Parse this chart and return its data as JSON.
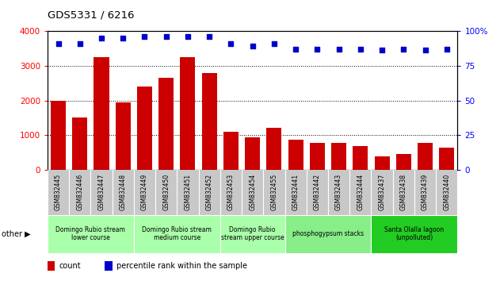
{
  "title": "GDS5331 / 6216",
  "samples": [
    "GSM832445",
    "GSM832446",
    "GSM832447",
    "GSM832448",
    "GSM832449",
    "GSM832450",
    "GSM832451",
    "GSM832452",
    "GSM832453",
    "GSM832454",
    "GSM832455",
    "GSM832441",
    "GSM832442",
    "GSM832443",
    "GSM832444",
    "GSM832437",
    "GSM832438",
    "GSM832439",
    "GSM832440"
  ],
  "counts": [
    2000,
    1500,
    3250,
    1950,
    2400,
    2650,
    3250,
    2800,
    1100,
    950,
    1220,
    870,
    780,
    780,
    700,
    390,
    450,
    780,
    640
  ],
  "percentiles": [
    91,
    91,
    95,
    95,
    96,
    96,
    96,
    96,
    91,
    89,
    91,
    87,
    87,
    87,
    87,
    86,
    87,
    86,
    87
  ],
  "bar_color": "#cc0000",
  "dot_color": "#0000cc",
  "ylim_left": [
    0,
    4000
  ],
  "ylim_right": [
    0,
    100
  ],
  "yticks_left": [
    0,
    1000,
    2000,
    3000,
    4000
  ],
  "yticks_right": [
    0,
    25,
    50,
    75,
    100
  ],
  "groups": [
    {
      "label": "Domingo Rubio stream\nlower course",
      "start": 0,
      "end": 4,
      "color": "#aaffaa"
    },
    {
      "label": "Domingo Rubio stream\nmedium course",
      "start": 4,
      "end": 8,
      "color": "#aaffaa"
    },
    {
      "label": "Domingo Rubio\nstream upper course",
      "start": 8,
      "end": 11,
      "color": "#aaffaa"
    },
    {
      "label": "phosphogypsum stacks",
      "start": 11,
      "end": 15,
      "color": "#88ee88"
    },
    {
      "label": "Santa Olalla lagoon\n(unpolluted)",
      "start": 15,
      "end": 19,
      "color": "#22cc22"
    }
  ],
  "xlabel_bg": "#c8c8c8",
  "other_label": "other",
  "legend_count_label": "count",
  "legend_pct_label": "percentile rank within the sample"
}
